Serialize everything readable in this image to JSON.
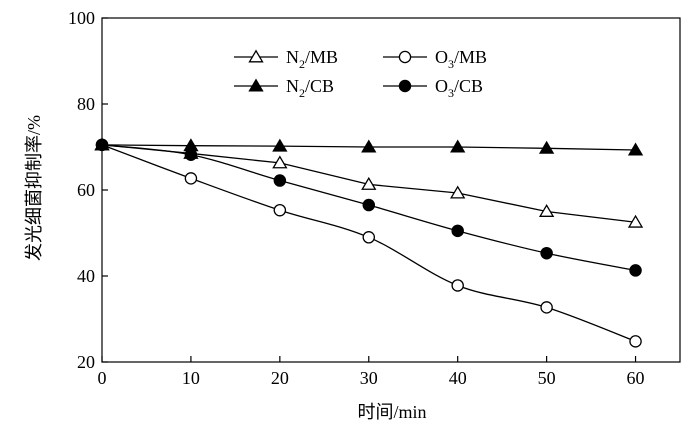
{
  "chart_data": {
    "type": "line",
    "xlabel": "时间/min",
    "ylabel": "发光细菌抑制率/%",
    "xlim": [
      0,
      65
    ],
    "ylim": [
      20,
      100
    ],
    "xticks": [
      0,
      10,
      20,
      30,
      40,
      50,
      60
    ],
    "yticks": [
      20,
      40,
      60,
      80,
      100
    ],
    "grid": false,
    "legend_position": "top-center",
    "series": [
      {
        "key": "n2mb",
        "name_base": "N",
        "name_sub": "2",
        "name_rest": "/MB",
        "marker": "triangle-open",
        "smooth": false,
        "x": [
          0,
          10,
          20,
          30,
          40,
          50,
          60
        ],
        "values": [
          70.5,
          68.5,
          66.3,
          61.3,
          59.3,
          55.0,
          52.5
        ]
      },
      {
        "key": "o3mb",
        "name_base": "O",
        "name_sub": "3",
        "name_rest": "/MB",
        "marker": "circle-open",
        "smooth": true,
        "x": [
          0,
          10,
          20,
          30,
          40,
          50,
          60
        ],
        "values": [
          70.5,
          62.7,
          55.3,
          49.0,
          37.8,
          32.7,
          24.8
        ]
      },
      {
        "key": "n2cb",
        "name_base": "N",
        "name_sub": "2",
        "name_rest": "/CB",
        "marker": "triangle-filled",
        "smooth": false,
        "x": [
          0,
          10,
          20,
          30,
          40,
          50,
          60
        ],
        "values": [
          70.5,
          70.3,
          70.2,
          70.0,
          70.0,
          69.7,
          69.3
        ]
      },
      {
        "key": "o3cb",
        "name_base": "O",
        "name_sub": "3",
        "name_rest": "/CB",
        "marker": "circle-filled",
        "smooth": true,
        "x": [
          0,
          10,
          20,
          30,
          40,
          50,
          60
        ],
        "values": [
          70.5,
          68.2,
          62.2,
          56.5,
          50.5,
          45.3,
          41.3
        ]
      }
    ]
  }
}
